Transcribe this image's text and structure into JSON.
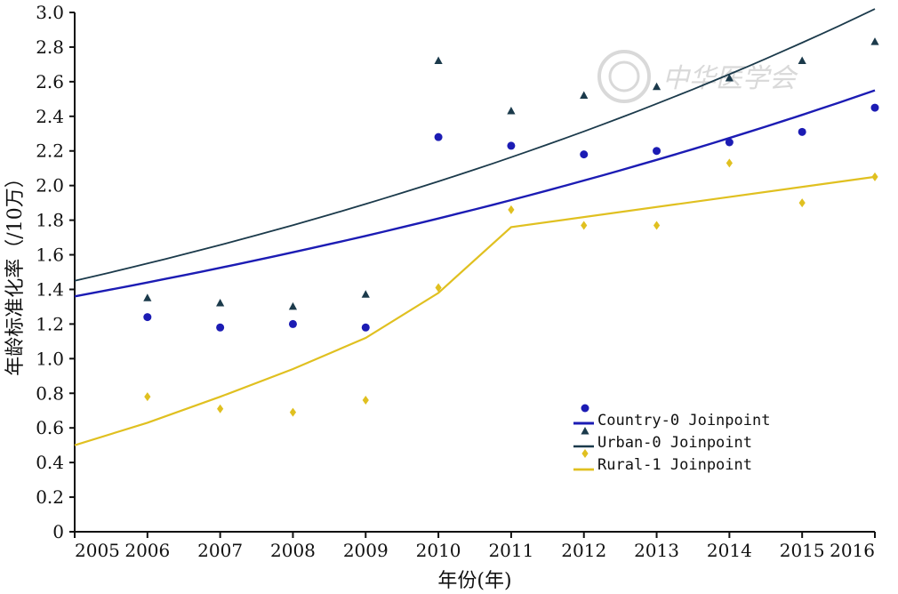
{
  "chart_data": {
    "type": "scatter",
    "xlabel": "年份(年)",
    "ylabel": "年龄标准化率（/10万）",
    "xlim": [
      2005,
      2016
    ],
    "ylim": [
      0,
      3.0
    ],
    "x_ticks": [
      "2005",
      "2006",
      "2007",
      "2008",
      "2009",
      "2010",
      "2011",
      "2012",
      "2013",
      "2014",
      "2015",
      "2016"
    ],
    "y_ticks": [
      "0",
      "0.2",
      "0.4",
      "0.6",
      "0.8",
      "1.0",
      "1.2",
      "1.4",
      "1.6",
      "1.8",
      "2.0",
      "2.2",
      "2.4",
      "2.6",
      "2.8",
      "3.0"
    ],
    "grid": false,
    "legend_position": "bottom-right",
    "series": [
      {
        "name": "Country-0 Joinpoint",
        "color": "#1c1cb4",
        "marker": "circle",
        "observed": {
          "x": [
            2006,
            2007,
            2008,
            2009,
            2010,
            2011,
            2012,
            2013,
            2014,
            2015,
            2016
          ],
          "y": [
            1.24,
            1.18,
            1.2,
            1.18,
            2.28,
            2.23,
            2.18,
            2.2,
            2.25,
            2.31,
            2.45
          ]
        },
        "fit": {
          "x": [
            2005,
            2016
          ],
          "y": [
            1.36,
            2.55
          ],
          "segments": 1
        }
      },
      {
        "name": "Urban-0 Joinpoint",
        "color": "#1b3a4b",
        "marker": "triangle",
        "observed": {
          "x": [
            2006,
            2007,
            2008,
            2009,
            2010,
            2011,
            2012,
            2013,
            2014,
            2015,
            2016
          ],
          "y": [
            1.35,
            1.32,
            1.3,
            1.37,
            2.72,
            2.43,
            2.52,
            2.57,
            2.62,
            2.72,
            2.83
          ]
        },
        "fit": {
          "x": [
            2005,
            2016
          ],
          "y": [
            1.45,
            3.02
          ],
          "segments": 1
        }
      },
      {
        "name": "Rural-1 Joinpoint",
        "color": "#e0c020",
        "marker": "diamond",
        "observed": {
          "x": [
            2006,
            2007,
            2008,
            2009,
            2010,
            2011,
            2012,
            2013,
            2014,
            2015,
            2016
          ],
          "y": [
            0.78,
            0.71,
            0.69,
            0.76,
            1.41,
            1.86,
            1.77,
            1.77,
            2.13,
            1.9,
            2.05
          ]
        },
        "fit": {
          "x": [
            2005,
            2006,
            2007,
            2008,
            2009,
            2010,
            2011,
            2016
          ],
          "y": [
            0.5,
            0.63,
            0.78,
            0.94,
            1.12,
            1.38,
            1.76,
            2.05
          ],
          "joinpoint_x": 2011
        }
      }
    ]
  },
  "watermark": {
    "text": "中华医学会",
    "color": "#d9d9d9"
  }
}
